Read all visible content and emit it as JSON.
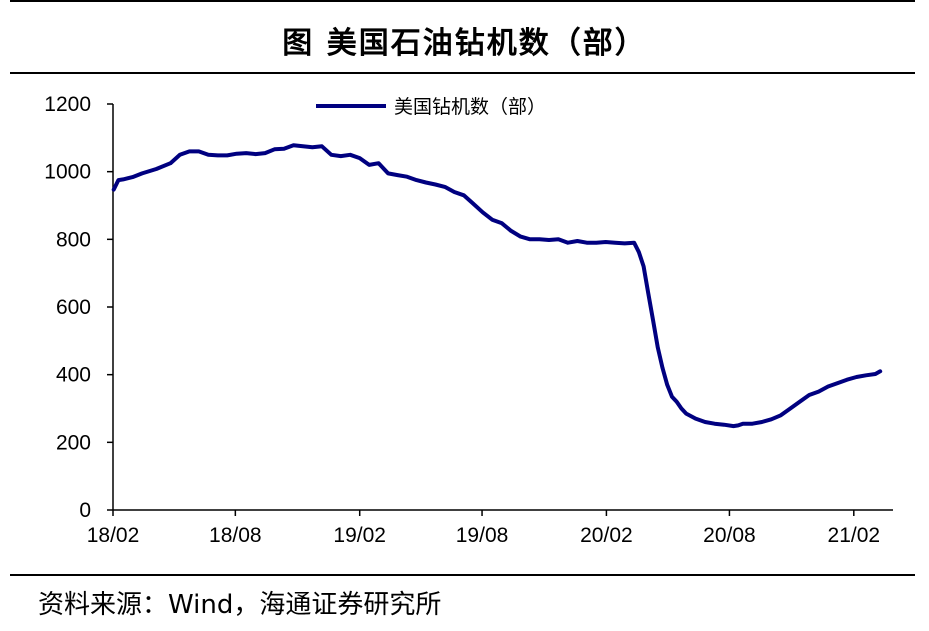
{
  "title": "图  美国石油钻机数（部）",
  "source": "资料来源：Wind，海通证券研究所",
  "colors": {
    "series": "#000080",
    "axis": "#000000"
  },
  "chart_data": {
    "type": "line",
    "title": "美国石油钻机数（部）",
    "xlabel": "",
    "ylabel": "",
    "ylim": [
      0,
      1200
    ],
    "yticks": [
      0,
      200,
      400,
      600,
      800,
      1000,
      1200
    ],
    "xticks": [
      "18/02",
      "18/08",
      "19/02",
      "19/08",
      "20/02",
      "20/08",
      "21/02"
    ],
    "legend_position": "top-center",
    "grid": false,
    "series": [
      {
        "name": "美国钻机数（部）",
        "color": "#000080",
        "x": [
          "2018-02-02",
          "2018-02-09",
          "2018-02-16",
          "2018-03-02",
          "2018-03-16",
          "2018-04-06",
          "2018-04-27",
          "2018-05-11",
          "2018-05-25",
          "2018-06-08",
          "2018-06-22",
          "2018-07-06",
          "2018-07-20",
          "2018-08-03",
          "2018-08-17",
          "2018-08-31",
          "2018-09-14",
          "2018-09-28",
          "2018-10-12",
          "2018-10-26",
          "2018-11-09",
          "2018-11-23",
          "2018-12-07",
          "2018-12-21",
          "2019-01-04",
          "2019-01-18",
          "2019-02-01",
          "2019-02-15",
          "2019-03-01",
          "2019-03-15",
          "2019-03-29",
          "2019-04-12",
          "2019-04-26",
          "2019-05-10",
          "2019-05-24",
          "2019-06-07",
          "2019-06-21",
          "2019-07-05",
          "2019-07-19",
          "2019-08-02",
          "2019-08-16",
          "2019-08-30",
          "2019-09-13",
          "2019-09-27",
          "2019-10-11",
          "2019-10-25",
          "2019-11-08",
          "2019-11-22",
          "2019-12-06",
          "2019-12-20",
          "2020-01-03",
          "2020-01-17",
          "2020-01-31",
          "2020-02-14",
          "2020-02-28",
          "2020-03-13",
          "2020-03-20",
          "2020-03-27",
          "2020-04-03",
          "2020-04-10",
          "2020-04-17",
          "2020-04-24",
          "2020-05-01",
          "2020-05-08",
          "2020-05-15",
          "2020-05-22",
          "2020-05-29",
          "2020-06-12",
          "2020-06-26",
          "2020-07-10",
          "2020-07-24",
          "2020-08-07",
          "2020-08-14",
          "2020-08-21",
          "2020-09-04",
          "2020-09-18",
          "2020-10-02",
          "2020-10-16",
          "2020-10-30",
          "2020-11-13",
          "2020-11-27",
          "2020-12-11",
          "2020-12-25",
          "2021-01-08",
          "2021-01-22",
          "2021-02-05",
          "2021-02-19",
          "2021-03-05",
          "2021-03-12"
        ],
        "values": [
          947,
          975,
          977,
          984,
          995,
          1008,
          1025,
          1050,
          1060,
          1060,
          1050,
          1048,
          1048,
          1053,
          1055,
          1052,
          1055,
          1066,
          1068,
          1078,
          1075,
          1072,
          1075,
          1050,
          1046,
          1050,
          1040,
          1020,
          1025,
          995,
          990,
          985,
          975,
          968,
          962,
          955,
          940,
          930,
          905,
          880,
          858,
          848,
          825,
          808,
          800,
          800,
          798,
          800,
          790,
          795,
          790,
          790,
          792,
          790,
          788,
          790,
          762,
          720,
          640,
          560,
          480,
          420,
          370,
          335,
          320,
          300,
          285,
          270,
          260,
          255,
          252,
          248,
          250,
          255,
          255,
          260,
          268,
          280,
          300,
          320,
          340,
          350,
          365,
          375,
          385,
          393,
          398,
          402,
          410
        ]
      }
    ]
  }
}
